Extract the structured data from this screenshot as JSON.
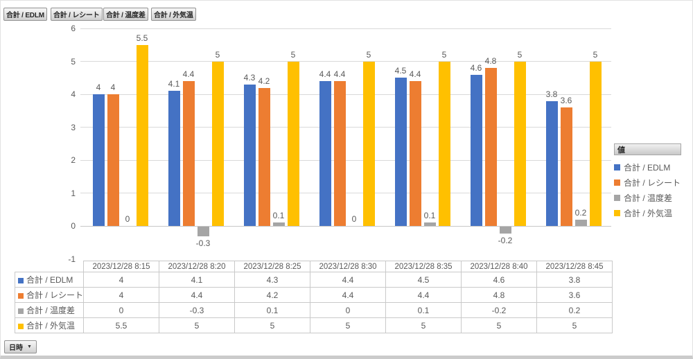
{
  "field_buttons": [
    {
      "label": "合計 / EDLM"
    },
    {
      "label": "合計 / レシート"
    },
    {
      "label": "合計 / 温度差"
    },
    {
      "label": "合計 / 外気温"
    }
  ],
  "axis_field_button": {
    "label": "日時",
    "arrow": "▼"
  },
  "legend": {
    "title": "値",
    "items": [
      {
        "label": "合計 / EDLM",
        "color": "#4472C4"
      },
      {
        "label": "合計 / レシート",
        "color": "#ED7D31"
      },
      {
        "label": "合計 / 温度差",
        "color": "#A5A5A5"
      },
      {
        "label": "合計 / 外気温",
        "color": "#FFC000"
      }
    ]
  },
  "chart_data": {
    "type": "bar",
    "categories": [
      "2023/12/28 8:15",
      "2023/12/28 8:20",
      "2023/12/28 8:25",
      "2023/12/28 8:30",
      "2023/12/28 8:35",
      "2023/12/28 8:40",
      "2023/12/28 8:45"
    ],
    "series": [
      {
        "name": "合計 / EDLM",
        "color": "#4472C4",
        "values": [
          4,
          4.1,
          4.3,
          4.4,
          4.5,
          4.6,
          3.8
        ]
      },
      {
        "name": "合計 / レシート",
        "color": "#ED7D31",
        "values": [
          4,
          4.4,
          4.2,
          4.4,
          4.4,
          4.8,
          3.6
        ]
      },
      {
        "name": "合計 / 温度差",
        "color": "#A5A5A5",
        "values": [
          0,
          -0.3,
          0.1,
          0,
          0.1,
          -0.2,
          0.2
        ]
      },
      {
        "name": "合計 / 外気温",
        "color": "#FFC000",
        "values": [
          5.5,
          5,
          5,
          5,
          5,
          5,
          5
        ]
      }
    ],
    "title": "",
    "xlabel": "",
    "ylabel": "",
    "ylim": [
      -1,
      6
    ],
    "yticks": [
      6,
      5,
      4,
      3,
      2,
      1,
      0,
      -1
    ],
    "grid": true,
    "data_labels": true,
    "legend_position": "right"
  },
  "table": {
    "columns": [
      "2023/12/28 8:15",
      "2023/12/28 8:20",
      "2023/12/28 8:25",
      "2023/12/28 8:30",
      "2023/12/28 8:35",
      "2023/12/28 8:40",
      "2023/12/28 8:45"
    ],
    "rows": [
      {
        "label": "合計 / EDLM",
        "color": "#4472C4",
        "values": [
          "4",
          "4.1",
          "4.3",
          "4.4",
          "4.5",
          "4.6",
          "3.8"
        ]
      },
      {
        "label": "合計 / レシート",
        "color": "#ED7D31",
        "values": [
          "4",
          "4.4",
          "4.2",
          "4.4",
          "4.4",
          "4.8",
          "3.6"
        ]
      },
      {
        "label": "合計 / 温度差",
        "color": "#A5A5A5",
        "values": [
          "0",
          "-0.3",
          "0.1",
          "0",
          "0.1",
          "-0.2",
          "0.2"
        ]
      },
      {
        "label": "合計 / 外気温",
        "color": "#FFC000",
        "values": [
          "5.5",
          "5",
          "5",
          "5",
          "5",
          "5",
          "5"
        ]
      }
    ]
  }
}
